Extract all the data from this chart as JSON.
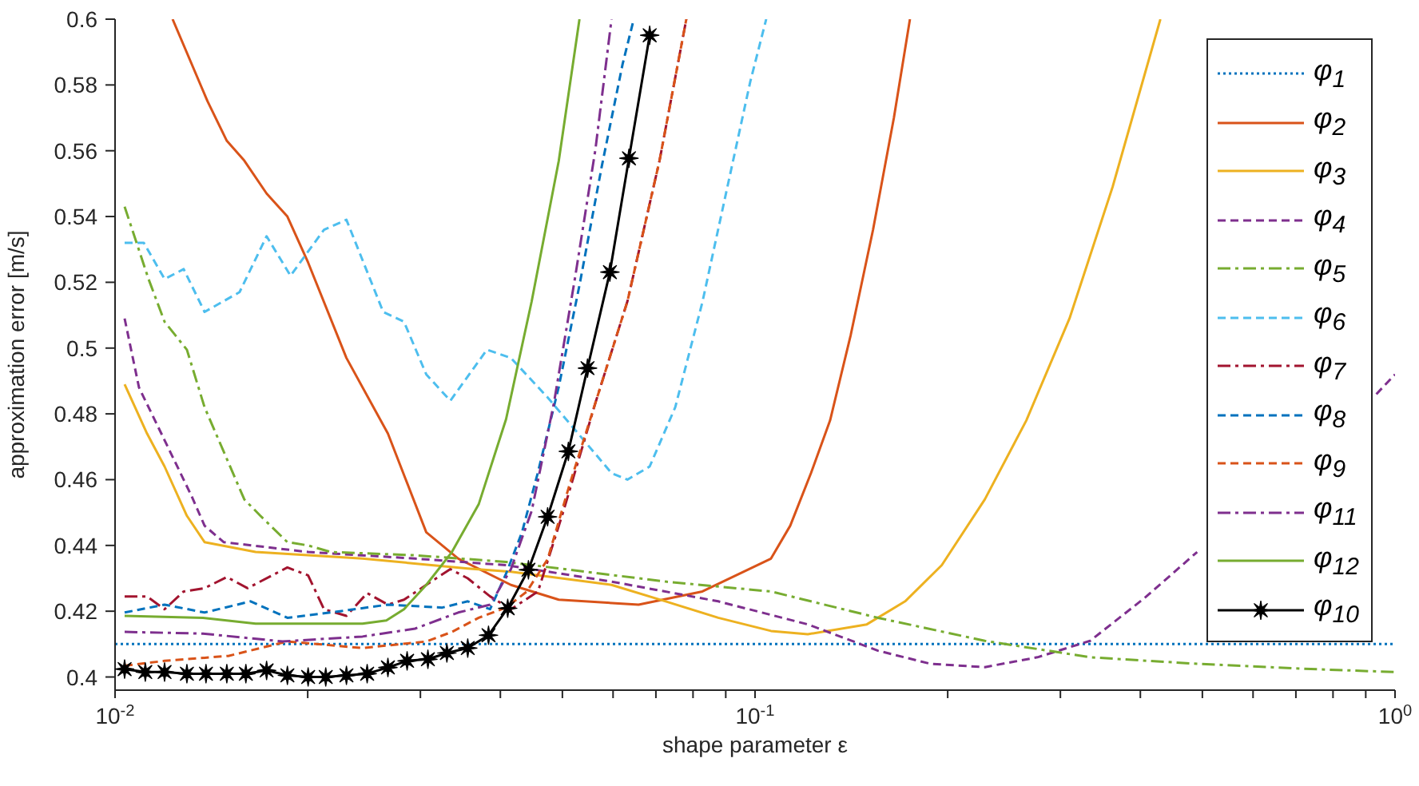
{
  "chart_data": {
    "type": "line",
    "xlabel": "shape parameter ε",
    "ylabel": "approximation error [m/s]",
    "log": "x",
    "xlim": [
      0.01,
      1
    ],
    "xticks": [
      {
        "value": 0.01,
        "label": "10$^{-2}$"
      },
      {
        "value": 0.02,
        "label": null
      },
      {
        "value": 0.03,
        "label": null
      },
      {
        "value": 0.04,
        "label": null
      },
      {
        "value": 0.05,
        "label": null
      },
      {
        "value": 0.06,
        "label": null
      },
      {
        "value": 0.07,
        "label": null
      },
      {
        "value": 0.08,
        "label": null
      },
      {
        "value": 0.09,
        "label": null
      },
      {
        "value": 0.1,
        "label": "10$^{-1}$"
      },
      {
        "value": 0.2,
        "label": null
      },
      {
        "value": 0.3,
        "label": null
      },
      {
        "value": 0.4,
        "label": null
      },
      {
        "value": 0.5,
        "label": null
      },
      {
        "value": 0.6,
        "label": null
      },
      {
        "value": 0.7,
        "label": null
      },
      {
        "value": 0.8,
        "label": null
      },
      {
        "value": 0.9,
        "label": null
      },
      {
        "value": 1,
        "label": "10$^{0}$"
      }
    ],
    "ylim": [
      0.396,
      0.6
    ],
    "yticks": [
      0.4,
      0.42,
      0.44,
      0.46,
      0.48,
      0.5,
      0.52,
      0.54,
      0.56,
      0.58,
      0.6
    ],
    "grid": false,
    "legend": "top right",
    "marker": "none",
    "series": [
      {
        "name": "φ$_{1}$",
        "color": "#0072bd",
        "line_style": "dotted",
        "x": [
          0.01,
          1
        ],
        "values": [
          0.41,
          0.41
        ]
      },
      {
        "name": "φ$_{2}$",
        "color": "#d95319",
        "line_style": "solid",
        "x": [
          0.0123,
          0.01395,
          0.01495,
          0.01592,
          0.01725,
          0.01859,
          0.02003,
          0.02299,
          0.02669,
          0.03064,
          0.03438,
          0.04155,
          0.04935,
          0.06577,
          0.08275,
          0.1059,
          0.1135,
          0.1223,
          0.131,
          0.1411,
          0.1529,
          0.1648,
          0.1746
        ],
        "values": [
          0.6,
          0.575,
          0.563,
          0.557,
          0.547,
          0.54,
          0.526,
          0.497,
          0.474,
          0.444,
          0.436,
          0.428,
          0.4235,
          0.422,
          0.426,
          0.436,
          0.446,
          0.462,
          0.478,
          0.504,
          0.536,
          0.57,
          0.6
        ]
      },
      {
        "name": "φ$_{3}$",
        "color": "#edb120",
        "line_style": "solid",
        "x": [
          0.01035,
          0.01122,
          0.01195,
          0.01295,
          0.0138,
          0.01658,
          0.02436,
          0.03557,
          0.04155,
          0.05967,
          0.0725,
          0.0876,
          0.1059,
          0.1209,
          0.1495,
          0.1716,
          0.1958,
          0.2286,
          0.2654,
          0.31,
          0.362,
          0.4299
        ],
        "values": [
          0.489,
          0.474,
          0.464,
          0.449,
          0.441,
          0.438,
          0.436,
          0.433,
          0.432,
          0.428,
          0.423,
          0.418,
          0.414,
          0.413,
          0.416,
          0.423,
          0.434,
          0.454,
          0.478,
          0.509,
          0.549,
          0.6
        ]
      },
      {
        "name": "φ$_{4}$",
        "color": "#7e2f8e",
        "line_style": "dashed",
        "x": [
          0.01035,
          0.0109,
          0.01195,
          0.01317,
          0.0138,
          0.01478,
          0.02003,
          0.02943,
          0.04083,
          0.05967,
          0.0876,
          0.1209,
          0.1556,
          0.1881,
          0.2286,
          0.2763,
          0.3339,
          0.406,
          0.4907,
          0.593,
          0.721,
          0.871,
          0.935,
          1
        ],
        "values": [
          0.509,
          0.488,
          0.472,
          0.455,
          0.446,
          0.441,
          0.438,
          0.436,
          0.434,
          0.429,
          0.423,
          0.416,
          0.408,
          0.404,
          0.403,
          0.406,
          0.411,
          0.424,
          0.438,
          null,
          null,
          null,
          0.486,
          0.492
        ]
      },
      {
        "name": "φ$_{5}$",
        "color": "#77ac30",
        "line_style": "dashdot",
        "x": [
          0.01035,
          0.01128,
          0.01195,
          0.01295,
          0.0138,
          0.01592,
          0.01687,
          0.01859,
          0.02003,
          0.02171,
          0.02943,
          0.04083,
          0.04935,
          0.0725,
          0.1059,
          0.1556,
          0.2286,
          0.3339,
          0.4907,
          0.721,
          1
        ],
        "values": [
          0.543,
          0.521,
          0.508,
          0.4995,
          0.482,
          0.454,
          0.449,
          0.441,
          0.44,
          0.438,
          0.437,
          0.435,
          0.433,
          0.429,
          0.426,
          0.418,
          0.411,
          0.406,
          0.404,
          0.4025,
          0.4015
        ]
      },
      {
        "name": "φ$_{6}$",
        "color": "#4dbeee",
        "line_style": "dashed",
        "x": [
          0.01035,
          0.01109,
          0.01195,
          0.0128,
          0.0138,
          0.01565,
          0.01725,
          0.0188,
          0.02121,
          0.02299,
          0.02624,
          0.02828,
          0.03064,
          0.03341,
          0.03811,
          0.04155,
          0.04741,
          0.05967,
          0.06318,
          0.06845,
          0.07504,
          0.08275,
          0.09123,
          0.0983,
          0.1041
        ],
        "values": [
          0.532,
          0.532,
          0.521,
          0.524,
          0.511,
          0.517,
          0.534,
          0.522,
          0.536,
          0.539,
          0.511,
          0.508,
          0.492,
          0.484,
          0.4995,
          0.497,
          0.485,
          0.462,
          0.46,
          0.464,
          0.482,
          0.514,
          0.552,
          0.581,
          0.6
        ]
      },
      {
        "name": "φ$_{7}$",
        "color": "#a2142f",
        "line_style": "dashdot",
        "x": [
          0.01035,
          0.01122,
          0.01195,
          0.0128,
          0.0138,
          0.01495,
          0.01611,
          0.01859,
          0.02003,
          0.02121,
          0.02299,
          0.02477,
          0.02669,
          0.02828,
          0.03064,
          0.03341,
          0.03557,
          0.03855,
          0.04155,
          0.0458,
          0.0502,
          0.0563,
          0.06318,
          0.0709,
          0.0781
        ],
        "values": [
          0.4245,
          0.4245,
          0.4206,
          0.426,
          0.427,
          0.4304,
          0.427,
          0.4333,
          0.4309,
          0.4206,
          0.4186,
          0.4255,
          0.422,
          0.4235,
          0.428,
          0.4328,
          0.43,
          0.4245,
          0.4206,
          0.426,
          0.4505,
          0.4833,
          0.5142,
          0.5569,
          0.6
        ]
      },
      {
        "name": "φ$_{8}$",
        "color": "#0072bd",
        "line_style": "dashed",
        "x": [
          0.01035,
          0.01195,
          0.0138,
          0.01629,
          0.01859,
          0.02171,
          0.02669,
          0.03245,
          0.03557,
          0.03855,
          0.04083,
          0.04325,
          0.0458,
          0.04935,
          0.05317,
          0.05763,
          0.06209,
          0.06464
        ],
        "values": [
          0.4196,
          0.422,
          0.4196,
          0.423,
          0.418,
          0.4196,
          0.422,
          0.4211,
          0.423,
          0.4206,
          0.4314,
          0.4441,
          0.4623,
          0.4882,
          0.5191,
          0.5554,
          0.5863,
          0.6
        ]
      },
      {
        "name": "φ$_{9}$",
        "color": "#d95319",
        "line_style": "dashed",
        "x": [
          0.01035,
          0.01195,
          0.01503,
          0.01859,
          0.02436,
          0.03064,
          0.0336,
          0.037,
          0.04083,
          0.044,
          0.04741,
          0.05137,
          0.0563,
          0.06318,
          0.0709,
          0.0781
        ],
        "values": [
          0.4034,
          0.4049,
          0.4064,
          0.4108,
          0.4088,
          0.4108,
          0.4137,
          0.418,
          0.4211,
          0.426,
          0.4358,
          0.4588,
          0.4833,
          0.5142,
          0.5569,
          0.6
        ]
      },
      {
        "name": "φ$_{11}$",
        "color": "#7e2f8e",
        "line_style": "dashdot",
        "x": [
          0.01035,
          0.01372,
          0.01827,
          0.02436,
          0.02943,
          0.03438,
          0.03855,
          0.04155,
          0.04477,
          0.0485,
          0.0523,
          0.0563,
          0.05967
        ],
        "values": [
          0.4137,
          0.4132,
          0.4108,
          0.4123,
          0.4147,
          0.4196,
          0.422,
          0.4328,
          0.4505,
          0.4833,
          0.5211,
          0.5603,
          0.6
        ]
      },
      {
        "name": "φ$_{12}$",
        "color": "#77ac30",
        "line_style": "solid",
        "x": [
          0.01035,
          0.01372,
          0.01658,
          0.02436,
          0.02654,
          0.02828,
          0.03064,
          0.0336,
          0.037,
          0.04083,
          0.04477,
          0.04935,
          0.05317
        ],
        "values": [
          0.4186,
          0.418,
          0.4162,
          0.4162,
          0.4172,
          0.4206,
          0.428,
          0.438,
          0.4525,
          0.4784,
          0.5142,
          0.5569,
          0.6
        ]
      },
      {
        "name": "φ$_{10}$",
        "color": "#000000",
        "line_style": "solid",
        "marker": "star",
        "x": [
          0.01035,
          0.01115,
          0.01195,
          0.01295,
          0.01387,
          0.01495,
          0.01601,
          0.01725,
          0.01859,
          0.02003,
          0.02134,
          0.02299,
          0.02477,
          0.02669,
          0.0286,
          0.03082,
          0.033,
          0.03557,
          0.03833,
          0.04107,
          0.04425,
          0.04741,
          0.05109,
          0.05473,
          0.05932,
          0.06353,
          0.06845
        ],
        "values": [
          0.4024,
          0.4015,
          0.4015,
          0.401,
          0.401,
          0.401,
          0.401,
          0.402,
          0.4005,
          0.4,
          0.4,
          0.4005,
          0.401,
          0.4029,
          0.4049,
          0.4054,
          0.4073,
          0.4088,
          0.4127,
          0.4209,
          0.4326,
          0.4487,
          0.4686,
          0.4939,
          0.5231,
          0.5577,
          0.5951
        ]
      }
    ]
  }
}
